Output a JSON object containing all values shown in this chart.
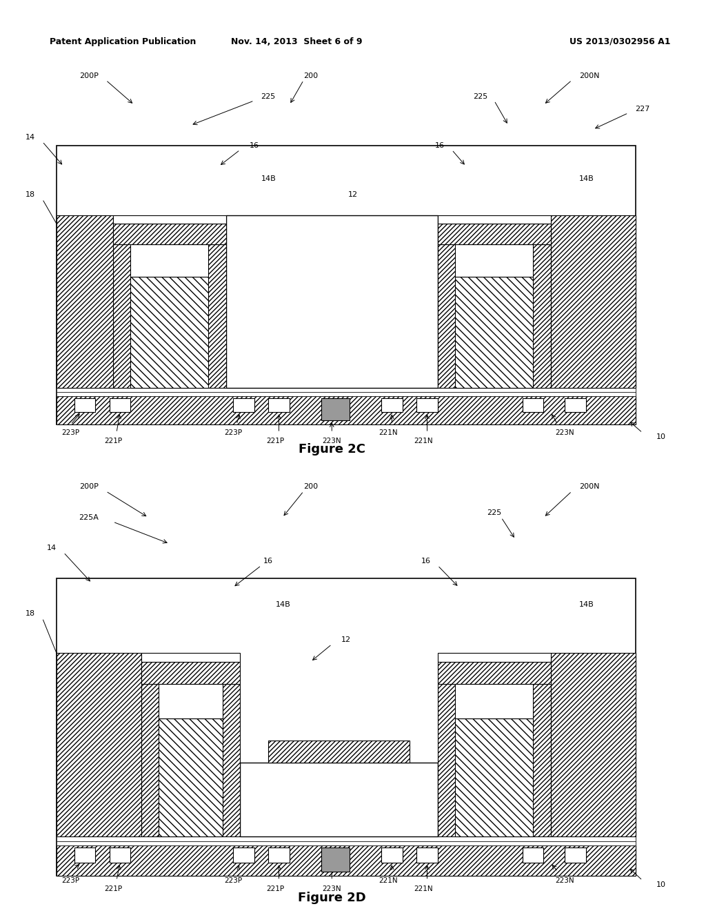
{
  "header_left": "Patent Application Publication",
  "header_mid": "Nov. 14, 2013  Sheet 6 of 9",
  "header_right": "US 2013/0302956 A1",
  "fig2c_title": "Figure 2C",
  "fig2d_title": "Figure 2D",
  "bg_color": "#ffffff",
  "gray_fill": "#999999"
}
